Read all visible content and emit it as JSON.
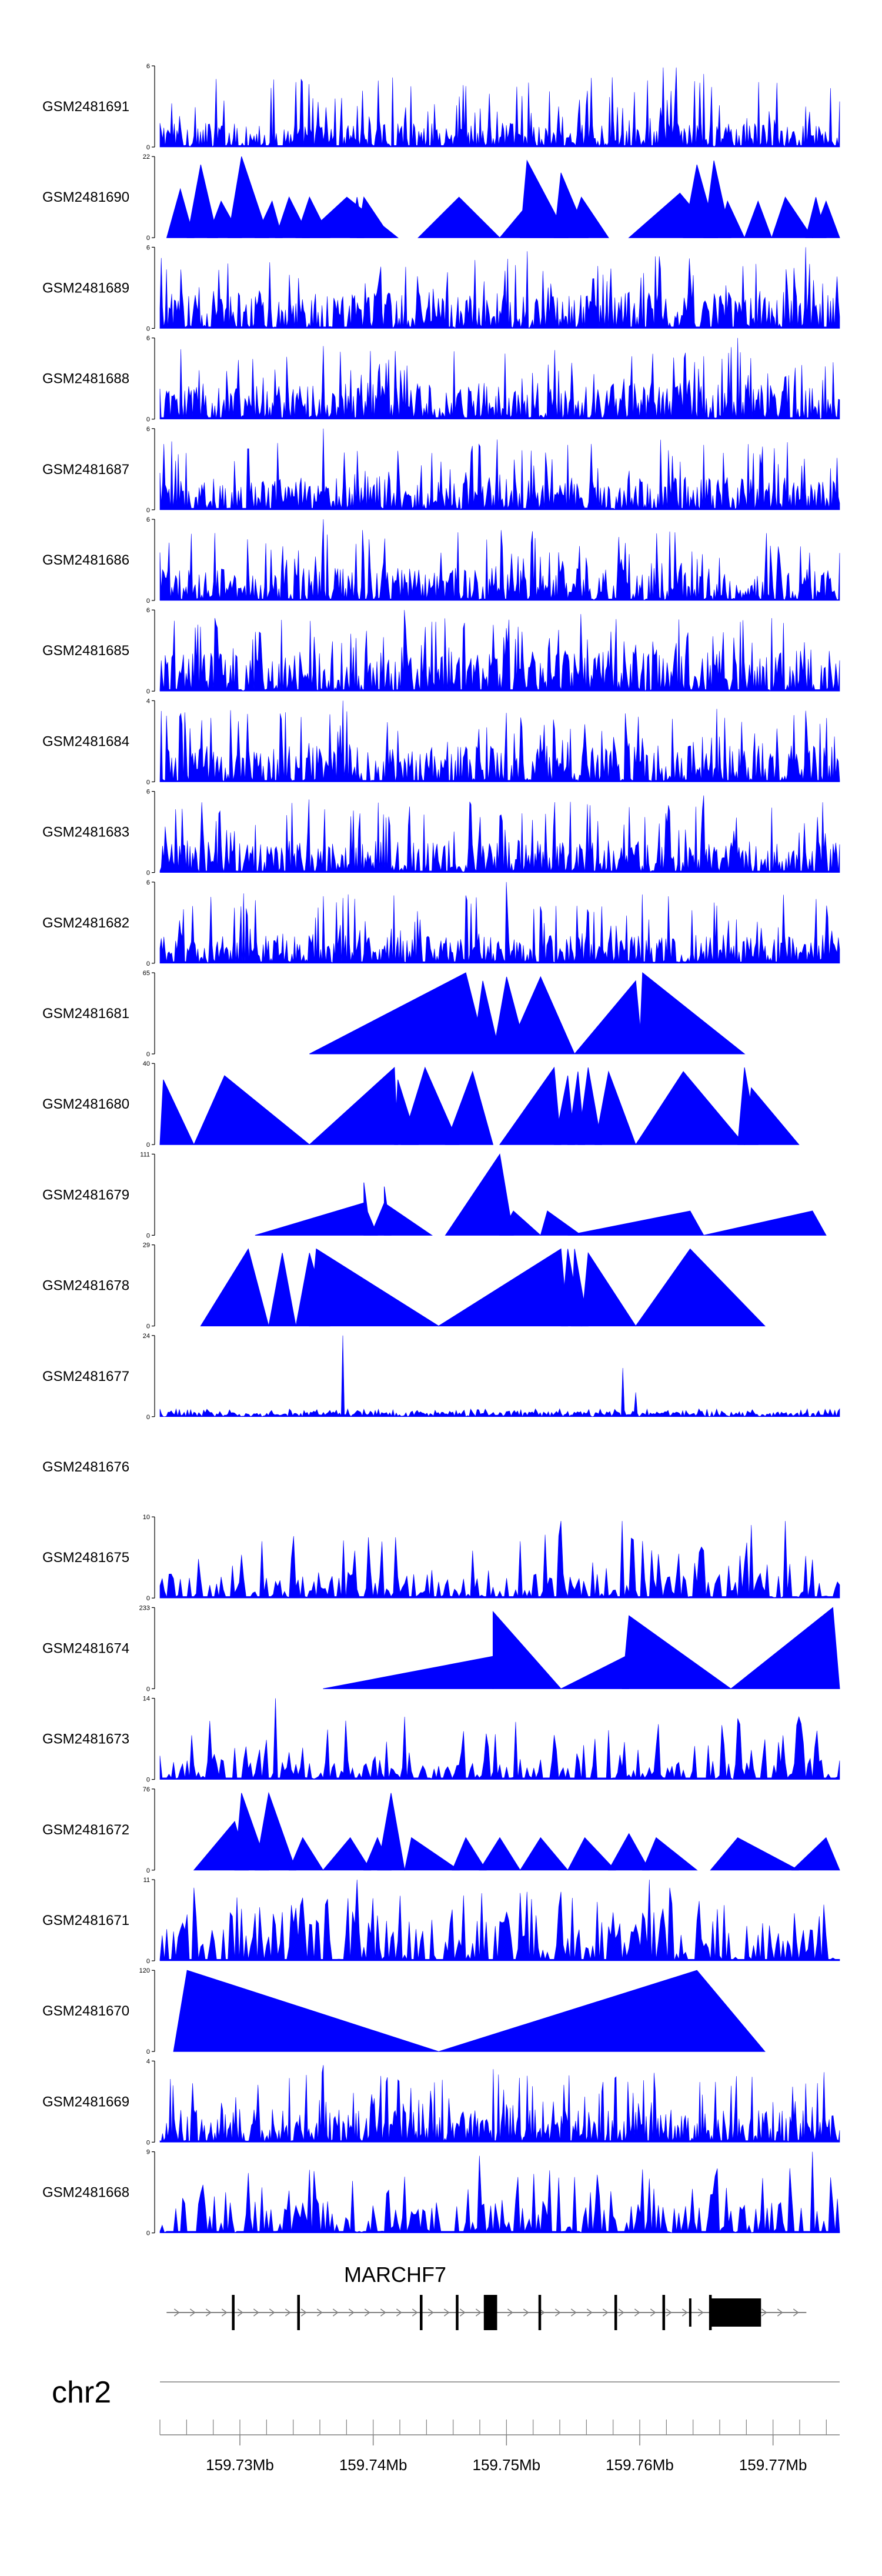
{
  "chart_data": {
    "type": "area",
    "title": "",
    "colors": {
      "fill": "#0000ff",
      "stroke": "#0000ff",
      "axis": "#000000",
      "gene": "#000000",
      "strand": "#808080"
    },
    "tracks": [
      {
        "name": "GSM2481691",
        "ymax": 6,
        "ymax_label": "6",
        "ymin_label": "0",
        "style": "dense",
        "level": 0.3,
        "spikes": [
          [
            0.2,
            0.8
          ],
          [
            0.45,
            0.75
          ],
          [
            0.74,
            0.98
          ],
          [
            0.76,
            0.98
          ],
          [
            0.8,
            0.9
          ],
          [
            0.88,
            0.8
          ]
        ]
      },
      {
        "name": "GSM2481690",
        "ymax": 22,
        "ymax_label": "22",
        "ymin_label": "0",
        "style": "peaks",
        "peaks": [
          [
            0.01,
            0.03,
            0.05,
            0.6
          ],
          [
            0.04,
            0.06,
            0.085,
            0.9
          ],
          [
            0.07,
            0.09,
            0.12,
            0.45
          ],
          [
            0.1,
            0.12,
            0.16,
            1.0
          ],
          [
            0.14,
            0.165,
            0.18,
            0.45
          ],
          [
            0.17,
            0.19,
            0.22,
            0.5
          ],
          [
            0.2,
            0.22,
            0.25,
            0.5
          ],
          [
            0.21,
            0.275,
            0.35,
            0.5
          ],
          [
            0.28,
            0.29,
            0.3,
            0.5
          ],
          [
            0.29,
            0.3,
            0.34,
            0.5
          ],
          [
            0.38,
            0.44,
            0.5,
            0.5
          ],
          [
            0.5,
            0.55,
            0.6,
            0.5
          ],
          [
            0.53,
            0.54,
            0.6,
            0.95
          ],
          [
            0.58,
            0.59,
            0.63,
            0.8
          ],
          [
            0.6,
            0.62,
            0.66,
            0.5
          ],
          [
            0.69,
            0.765,
            0.82,
            0.55
          ],
          [
            0.77,
            0.79,
            0.82,
            0.9
          ],
          [
            0.8,
            0.815,
            0.84,
            0.95
          ],
          [
            0.82,
            0.835,
            0.86,
            0.45
          ],
          [
            0.86,
            0.88,
            0.9,
            0.45
          ],
          [
            0.9,
            0.92,
            0.96,
            0.5
          ],
          [
            0.95,
            0.965,
            0.98,
            0.5
          ],
          [
            0.96,
            0.98,
            1.0,
            0.45
          ]
        ]
      },
      {
        "name": "GSM2481689",
        "ymax": 6,
        "ymax_label": "6",
        "ymin_label": "0",
        "style": "dense",
        "level": 0.45,
        "spikes": [
          [
            0.1,
            0.8
          ],
          [
            0.54,
            0.95
          ],
          [
            0.95,
            1.0
          ]
        ]
      },
      {
        "name": "GSM2481688",
        "ymax": 6,
        "ymax_label": "6",
        "ymin_label": "0",
        "style": "dense",
        "level": 0.45,
        "spikes": [
          [
            0.24,
            0.9
          ],
          [
            0.58,
            0.85
          ],
          [
            0.85,
            1.0
          ],
          [
            0.99,
            0.7
          ]
        ]
      },
      {
        "name": "GSM2481687",
        "ymax": 6,
        "ymax_label": "6",
        "ymin_label": "0",
        "style": "dense",
        "level": 0.4,
        "spikes": [
          [
            0.24,
            1.0
          ],
          [
            0.4,
            0.7
          ],
          [
            0.6,
            0.8
          ],
          [
            0.8,
            0.8
          ]
        ]
      },
      {
        "name": "GSM2481686",
        "ymax": 6,
        "ymax_label": "6",
        "ymin_label": "0",
        "style": "dense",
        "level": 0.4,
        "spikes": [
          [
            0.24,
            1.0
          ],
          [
            0.48,
            0.75
          ],
          [
            0.75,
            0.85
          ]
        ]
      },
      {
        "name": "GSM2481685",
        "ymax": 6,
        "ymax_label": "6",
        "ymin_label": "0",
        "style": "dense",
        "level": 0.5,
        "spikes": [
          [
            0.08,
            0.9
          ],
          [
            0.36,
            1.0
          ],
          [
            0.62,
            0.95
          ],
          [
            0.9,
            0.9
          ]
        ]
      },
      {
        "name": "GSM2481684",
        "ymax": 4,
        "ymax_label": "4",
        "ymin_label": "0",
        "style": "dense",
        "level": 0.45,
        "spikes": [
          [
            0.27,
            1.0
          ],
          [
            0.51,
            0.85
          ],
          [
            0.82,
            0.9
          ]
        ]
      },
      {
        "name": "GSM2481683",
        "ymax": 6,
        "ymax_label": "6",
        "ymin_label": "0",
        "style": "dense",
        "level": 0.4,
        "spikes": [
          [
            0.22,
            0.9
          ],
          [
            0.5,
            0.7
          ],
          [
            0.8,
            0.95
          ],
          [
            0.9,
            0.8
          ]
        ]
      },
      {
        "name": "GSM2481682",
        "ymax": 6,
        "ymax_label": "6",
        "ymin_label": "0",
        "style": "dense",
        "level": 0.35,
        "spikes": [
          [
            0.12,
            0.7
          ],
          [
            0.26,
            0.75
          ],
          [
            0.51,
            1.0
          ],
          [
            0.56,
            0.7
          ],
          [
            0.65,
            0.7
          ]
        ]
      },
      {
        "name": "GSM2481681",
        "ymax": 65,
        "ymax_label": "65",
        "ymin_label": "0",
        "style": "peaks",
        "peaks": [
          [
            0.22,
            0.45,
            0.48,
            1.0
          ],
          [
            0.46,
            0.475,
            0.5,
            0.9
          ],
          [
            0.49,
            0.51,
            0.54,
            0.95
          ],
          [
            0.51,
            0.56,
            0.61,
            0.95
          ],
          [
            0.61,
            0.7,
            0.71,
            0.9
          ],
          [
            0.705,
            0.71,
            0.86,
            1.0
          ]
        ]
      },
      {
        "name": "GSM2481680",
        "ymax": 40,
        "ymax_label": "40",
        "ymin_label": "0",
        "style": "peaks",
        "peaks": [
          [
            0.0,
            0.005,
            0.05,
            0.8
          ],
          [
            0.05,
            0.095,
            0.22,
            0.85
          ],
          [
            0.22,
            0.345,
            0.35,
            0.95
          ],
          [
            0.345,
            0.35,
            0.38,
            0.8
          ],
          [
            0.355,
            0.39,
            0.44,
            0.95
          ],
          [
            0.42,
            0.46,
            0.49,
            0.9
          ],
          [
            0.5,
            0.58,
            0.59,
            0.95
          ],
          [
            0.58,
            0.6,
            0.61,
            0.85
          ],
          [
            0.6,
            0.615,
            0.625,
            0.9
          ],
          [
            0.615,
            0.63,
            0.65,
            0.95
          ],
          [
            0.64,
            0.66,
            0.7,
            0.9
          ],
          [
            0.7,
            0.77,
            0.86,
            0.9
          ],
          [
            0.85,
            0.86,
            0.88,
            0.95
          ],
          [
            0.86,
            0.87,
            0.94,
            0.7
          ]
        ]
      },
      {
        "name": "GSM2481679",
        "ymax": 111,
        "ymax_label": "111",
        "ymin_label": "0",
        "style": "peaks",
        "peaks": [
          [
            0.14,
            0.3,
            0.32,
            0.4
          ],
          [
            0.31,
            0.33,
            0.4,
            0.4
          ],
          [
            0.3,
            0.3,
            0.31,
            0.65
          ],
          [
            0.33,
            0.33,
            0.34,
            0.6
          ],
          [
            0.42,
            0.5,
            0.52,
            1.0
          ],
          [
            0.5,
            0.52,
            0.56,
            0.3
          ],
          [
            0.56,
            0.57,
            0.62,
            0.3
          ],
          [
            0.6,
            0.78,
            0.8,
            0.3
          ],
          [
            0.8,
            0.96,
            0.98,
            0.3
          ]
        ]
      },
      {
        "name": "GSM2481678",
        "ymax": 29,
        "ymax_label": "29",
        "ymin_label": "0",
        "style": "peaks",
        "peaks": [
          [
            0.06,
            0.13,
            0.16,
            0.95
          ],
          [
            0.16,
            0.18,
            0.2,
            0.9
          ],
          [
            0.2,
            0.22,
            0.25,
            0.9
          ],
          [
            0.22,
            0.23,
            0.41,
            0.95
          ],
          [
            0.41,
            0.59,
            0.6,
            0.95
          ],
          [
            0.59,
            0.6,
            0.62,
            0.95
          ],
          [
            0.605,
            0.61,
            0.63,
            0.95
          ],
          [
            0.62,
            0.63,
            0.7,
            0.9
          ],
          [
            0.7,
            0.78,
            0.89,
            0.95
          ]
        ]
      },
      {
        "name": "GSM2481677",
        "ymax": 24,
        "ymax_label": "24",
        "ymin_label": "0",
        "style": "noise",
        "level": 0.1,
        "spikes": [
          [
            0.27,
            1.0
          ],
          [
            0.68,
            0.6
          ],
          [
            0.7,
            0.3
          ]
        ]
      },
      {
        "name": "GSM2481676",
        "ymax": 0,
        "ymax_label": "",
        "ymin_label": "",
        "style": "empty"
      },
      {
        "name": "GSM2481675",
        "ymax": 10,
        "ymax_label": "10",
        "ymin_label": "0",
        "style": "medium",
        "level": 0.3,
        "spikes": [
          [
            0.15,
            0.7
          ],
          [
            0.53,
            0.7
          ],
          [
            0.59,
            0.95
          ],
          [
            0.68,
            0.95
          ],
          [
            0.87,
            0.9
          ],
          [
            0.92,
            0.95
          ]
        ]
      },
      {
        "name": "GSM2481674",
        "ymax": 233,
        "ymax_label": "233",
        "ymin_label": "0",
        "style": "peaks",
        "peaks": [
          [
            0.24,
            0.49,
            0.49,
            0.4
          ],
          [
            0.49,
            0.49,
            0.59,
            0.95
          ],
          [
            0.59,
            0.685,
            0.69,
            0.4
          ],
          [
            0.68,
            0.69,
            0.84,
            0.9
          ],
          [
            0.84,
            0.99,
            1.0,
            1.0
          ]
        ]
      },
      {
        "name": "GSM2481673",
        "ymax": 14,
        "ymax_label": "14",
        "ymin_label": "0",
        "style": "medium",
        "level": 0.25,
        "spikes": [
          [
            0.17,
            1.0
          ],
          [
            0.64,
            0.5
          ]
        ]
      },
      {
        "name": "GSM2481672",
        "ymax": 76,
        "ymax_label": "76",
        "ymin_label": "0",
        "style": "peaks",
        "peaks": [
          [
            0.05,
            0.11,
            0.13,
            0.6
          ],
          [
            0.11,
            0.12,
            0.16,
            0.95
          ],
          [
            0.14,
            0.16,
            0.2,
            0.95
          ],
          [
            0.19,
            0.21,
            0.24,
            0.4
          ],
          [
            0.24,
            0.28,
            0.31,
            0.4
          ],
          [
            0.3,
            0.32,
            0.34,
            0.4
          ],
          [
            0.32,
            0.34,
            0.36,
            0.95
          ],
          [
            0.36,
            0.37,
            0.44,
            0.4
          ],
          [
            0.43,
            0.45,
            0.48,
            0.4
          ],
          [
            0.47,
            0.5,
            0.53,
            0.4
          ],
          [
            0.53,
            0.56,
            0.6,
            0.4
          ],
          [
            0.6,
            0.625,
            0.67,
            0.4
          ],
          [
            0.66,
            0.69,
            0.72,
            0.45
          ],
          [
            0.71,
            0.73,
            0.79,
            0.4
          ],
          [
            0.81,
            0.85,
            0.94,
            0.4
          ],
          [
            0.93,
            0.98,
            1.0,
            0.4
          ]
        ]
      },
      {
        "name": "GSM2481671",
        "ymax": 11,
        "ymax_label": "11",
        "ymin_label": "0",
        "style": "medium",
        "level": 0.5,
        "spikes": [
          [
            0.05,
            0.9
          ],
          [
            0.29,
            1.0
          ],
          [
            0.54,
            0.85
          ],
          [
            0.72,
            1.0
          ],
          [
            0.75,
            0.9
          ]
        ]
      },
      {
        "name": "GSM2481670",
        "ymax": 120,
        "ymax_label": "120",
        "ymin_label": "0",
        "style": "peaks",
        "peaks": [
          [
            0.02,
            0.04,
            0.41,
            1.0
          ],
          [
            0.41,
            0.79,
            0.89,
            1.0
          ]
        ]
      },
      {
        "name": "GSM2481669",
        "ymax": 4,
        "ymax_label": "4",
        "ymin_label": "0",
        "style": "dense",
        "level": 0.4,
        "spikes": [
          [
            0.02,
            0.7
          ],
          [
            0.24,
            0.95
          ],
          [
            0.49,
            0.9
          ]
        ]
      },
      {
        "name": "GSM2481668",
        "ymax": 9,
        "ymax_label": "9",
        "ymin_label": "0",
        "style": "medium",
        "level": 0.4,
        "spikes": [
          [
            0.47,
            0.95
          ],
          [
            0.96,
            1.0
          ]
        ]
      }
    ],
    "gene": {
      "name": "MARCHF7",
      "strand": "+",
      "start_mb": 159.7245,
      "end_mb": 159.7725,
      "exons": [
        {
          "start_mb": 159.7294,
          "end_mb": 159.7296,
          "tall": true
        },
        {
          "start_mb": 159.7343,
          "end_mb": 159.7345,
          "tall": true
        },
        {
          "start_mb": 159.7435,
          "end_mb": 159.7437,
          "tall": true
        },
        {
          "start_mb": 159.7462,
          "end_mb": 159.7464,
          "tall": true
        },
        {
          "start_mb": 159.7483,
          "end_mb": 159.7493,
          "tall": true
        },
        {
          "start_mb": 159.7524,
          "end_mb": 159.7526,
          "tall": true
        },
        {
          "start_mb": 159.7581,
          "end_mb": 159.7583,
          "tall": true
        },
        {
          "start_mb": 159.7617,
          "end_mb": 159.7619,
          "tall": true
        },
        {
          "start_mb": 159.7637,
          "end_mb": 159.7638,
          "tall": false
        },
        {
          "start_mb": 159.7652,
          "end_mb": 159.7654,
          "tall": true
        },
        {
          "start_mb": 159.7653,
          "end_mb": 159.7691,
          "tall": false
        }
      ]
    },
    "chromosome": "chr2",
    "x_axis": {
      "range_mb": [
        159.724,
        159.775
      ],
      "tick_step_mb": 0.002,
      "labeled_ticks": [
        159.73,
        159.74,
        159.75,
        159.76,
        159.77
      ],
      "tick_labels": [
        "159.73Mb",
        "159.74Mb",
        "159.75Mb",
        "159.76Mb",
        "159.77Mb"
      ]
    }
  }
}
